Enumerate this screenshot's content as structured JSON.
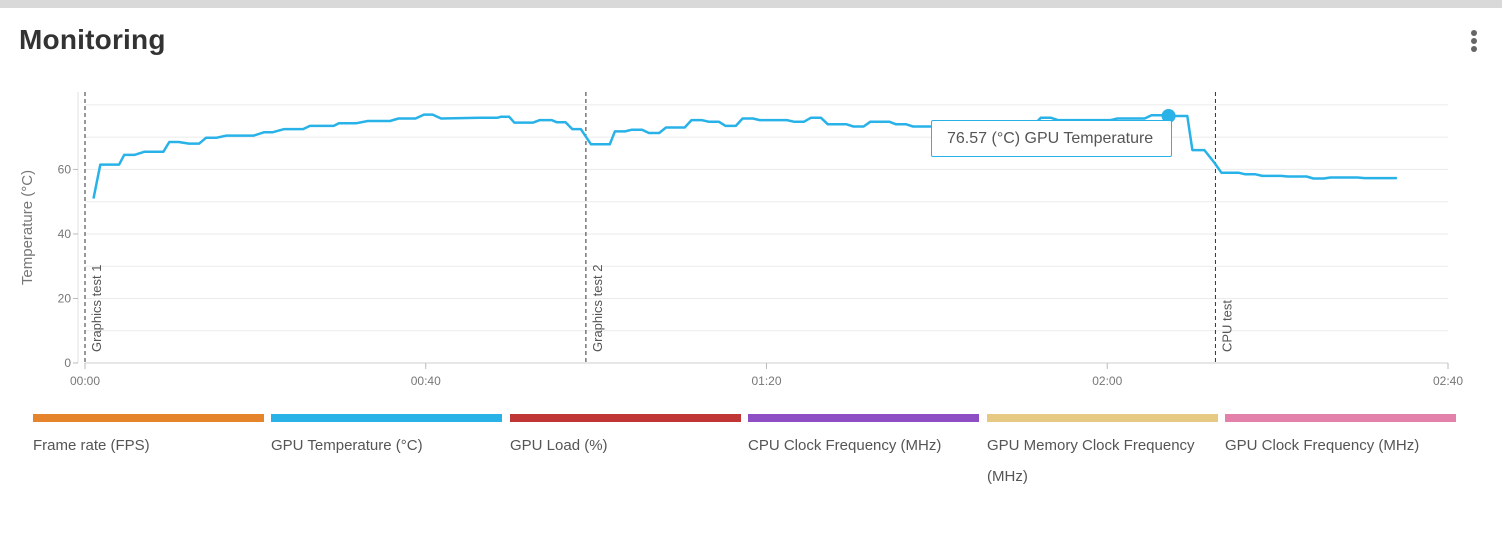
{
  "header": {
    "title": "Monitoring",
    "menu_icon": "kebab-menu-icon"
  },
  "tooltip": {
    "text": "76.57 (°C) GPU Temperature"
  },
  "chart_data": {
    "type": "line",
    "ylabel": "Temperature (°C)",
    "ylim": [
      0,
      84
    ],
    "yticks": [
      0,
      20,
      40,
      60
    ],
    "xlim": [
      0,
      160
    ],
    "xticks": [
      {
        "value": 0,
        "label": "00:00"
      },
      {
        "value": 40,
        "label": "00:40"
      },
      {
        "value": 80,
        "label": "01:20"
      },
      {
        "value": 120,
        "label": "02:00"
      },
      {
        "value": 160,
        "label": "02:40"
      }
    ],
    "grid": true,
    "markers": [
      {
        "x": 0,
        "label": "Graphics test 1"
      },
      {
        "x": 58.8,
        "label": "Graphics test 2"
      },
      {
        "x": 132.7,
        "label": "CPU test"
      }
    ],
    "highlight": {
      "x": 127.2,
      "y": 76.57
    },
    "series": [
      {
        "name": "GPU Temperature (°C)",
        "color": "#29b2e8",
        "points": [
          [
            1,
            51
          ],
          [
            1.8,
            61.5
          ],
          [
            4,
            61.5
          ],
          [
            4.6,
            64.5
          ],
          [
            5.8,
            64.5
          ],
          [
            7,
            65.5
          ],
          [
            9.2,
            65.5
          ],
          [
            9.9,
            68.5
          ],
          [
            11,
            68.5
          ],
          [
            12.2,
            68
          ],
          [
            13.4,
            68
          ],
          [
            14.2,
            69.8
          ],
          [
            15.4,
            69.8
          ],
          [
            16.6,
            70.5
          ],
          [
            19.8,
            70.5
          ],
          [
            21,
            71.5
          ],
          [
            22,
            71.5
          ],
          [
            23.4,
            72.5
          ],
          [
            25.6,
            72.5
          ],
          [
            26.4,
            73.5
          ],
          [
            29.2,
            73.5
          ],
          [
            29.8,
            74.3
          ],
          [
            31.8,
            74.3
          ],
          [
            33.2,
            75
          ],
          [
            35.8,
            75
          ],
          [
            36.8,
            75.8
          ],
          [
            38.8,
            75.8
          ],
          [
            39.8,
            77
          ],
          [
            40.8,
            77
          ],
          [
            41.8,
            75.8
          ],
          [
            46.4,
            76
          ],
          [
            47.2,
            76
          ],
          [
            48.4,
            76
          ],
          [
            48.8,
            76.3
          ],
          [
            49.8,
            76.3
          ],
          [
            50.4,
            74.5
          ],
          [
            52.6,
            74.5
          ],
          [
            53.4,
            75.3
          ],
          [
            54.8,
            75.3
          ],
          [
            55.4,
            74.6
          ],
          [
            56.4,
            74.6
          ],
          [
            57.2,
            72.5
          ],
          [
            58.2,
            72.5
          ],
          [
            59.4,
            67.8
          ],
          [
            61.6,
            67.8
          ],
          [
            62.2,
            71.8
          ],
          [
            63.4,
            71.8
          ],
          [
            64.2,
            72.3
          ],
          [
            65.4,
            72.3
          ],
          [
            66.2,
            71.3
          ],
          [
            67.4,
            71.3
          ],
          [
            68.2,
            73
          ],
          [
            70.4,
            73
          ],
          [
            71.2,
            75.3
          ],
          [
            72.4,
            75.3
          ],
          [
            73.2,
            74.8
          ],
          [
            74.4,
            74.8
          ],
          [
            75.2,
            73.5
          ],
          [
            76.4,
            73.5
          ],
          [
            77.2,
            75.8
          ],
          [
            78.4,
            75.8
          ],
          [
            79.2,
            75.3
          ],
          [
            82.4,
            75.3
          ],
          [
            83.2,
            74.8
          ],
          [
            84.4,
            74.8
          ],
          [
            85.2,
            76
          ],
          [
            86.4,
            76
          ],
          [
            87.2,
            74
          ],
          [
            89.4,
            74
          ],
          [
            90.2,
            73.3
          ],
          [
            91.4,
            73.3
          ],
          [
            92.2,
            74.8
          ],
          [
            94.4,
            74.8
          ],
          [
            95.2,
            74
          ],
          [
            96.4,
            74
          ],
          [
            97.2,
            73.3
          ],
          [
            99.4,
            73.3
          ],
          [
            100.2,
            74
          ],
          [
            105.4,
            74
          ],
          [
            106.6,
            73.8
          ],
          [
            111.4,
            73.8
          ],
          [
            112.2,
            76
          ],
          [
            113.4,
            76
          ],
          [
            114.2,
            75.3
          ],
          [
            120.4,
            75.3
          ],
          [
            121.2,
            75.8
          ],
          [
            124.4,
            75.8
          ],
          [
            125.2,
            76.8
          ],
          [
            126.4,
            76.8
          ],
          [
            127.2,
            76.57
          ],
          [
            129.4,
            76.57
          ],
          [
            130,
            66
          ],
          [
            131.4,
            66
          ],
          [
            132.6,
            62
          ],
          [
            133.4,
            59
          ],
          [
            135.4,
            59
          ],
          [
            136.2,
            58.5
          ],
          [
            137.4,
            58.5
          ],
          [
            138.2,
            58
          ],
          [
            140.4,
            58
          ],
          [
            141.2,
            57.8
          ],
          [
            143.4,
            57.8
          ],
          [
            144.2,
            57.2
          ],
          [
            145.4,
            57.2
          ],
          [
            146.2,
            57.5
          ],
          [
            149.4,
            57.5
          ],
          [
            150.2,
            57.3
          ],
          [
            154,
            57.3
          ]
        ]
      }
    ]
  },
  "legend": [
    {
      "label": "Frame rate (FPS)",
      "color": "#e5842b"
    },
    {
      "label": "GPU Temperature (°C)",
      "color": "#29b2e8"
    },
    {
      "label": "GPU Load (%)",
      "color": "#c03535"
    },
    {
      "label": "CPU Clock Frequency (MHz)",
      "color": "#8e4fc4"
    },
    {
      "label": "GPU Memory Clock Frequency (MHz)",
      "color": "#e6c983"
    },
    {
      "label": "GPU Clock Frequency (MHz)",
      "color": "#e381ab"
    }
  ]
}
